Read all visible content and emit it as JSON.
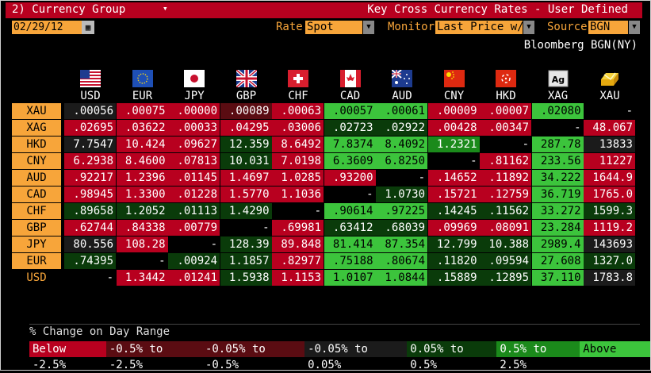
{
  "titlebar": {
    "left": "2) Currency Group",
    "caret": "▾",
    "right": "Key Cross Currency Rates - User Defined"
  },
  "controls": {
    "date": "02/29/12",
    "rate_label": "Rate",
    "rate_value": "Spot",
    "monitor_label": "Monitor",
    "monitor_value": "Last Price w/",
    "source_label": "Source",
    "source_value": "BGN",
    "source_text": "Bloomberg BGN(NY)"
  },
  "columns": [
    {
      "code": "USD",
      "flag": "us-flag-icon"
    },
    {
      "code": "EUR",
      "flag": "eu-flag-icon"
    },
    {
      "code": "JPY",
      "flag": "jp-flag-icon"
    },
    {
      "code": "GBP",
      "flag": "gb-flag-icon"
    },
    {
      "code": "CHF",
      "flag": "ch-flag-icon"
    },
    {
      "code": "CAD",
      "flag": "ca-flag-icon"
    },
    {
      "code": "AUD",
      "flag": "au-flag-icon"
    },
    {
      "code": "CNY",
      "flag": "cn-flag-icon"
    },
    {
      "code": "HKD",
      "flag": "hk-flag-icon"
    },
    {
      "code": "XAG",
      "flag": "silver-icon"
    },
    {
      "code": "XAU",
      "flag": "gold-icon"
    }
  ],
  "rows": [
    {
      "code": "XAU",
      "cells": [
        [
          ".00056",
          "ng"
        ],
        [
          ".00075",
          "lr"
        ],
        [
          ".00000",
          "lr"
        ],
        [
          ".00089",
          "dr"
        ],
        [
          ".00063",
          "lr"
        ],
        [
          ".00057",
          "lg"
        ],
        [
          ".00061",
          "lg"
        ],
        [
          ".00009",
          "lr"
        ],
        [
          ".00007",
          "lr"
        ],
        [
          ".02080",
          "lg"
        ],
        [
          "-",
          "na"
        ]
      ]
    },
    {
      "code": "XAG",
      "cells": [
        [
          ".02695",
          "lr"
        ],
        [
          ".03622",
          "lr"
        ],
        [
          ".00033",
          "lr"
        ],
        [
          ".04295",
          "lr"
        ],
        [
          ".03006",
          "lr"
        ],
        [
          ".02723",
          "dg"
        ],
        [
          ".02922",
          "dg"
        ],
        [
          ".00428",
          "lr"
        ],
        [
          ".00347",
          "lr"
        ],
        [
          "-",
          "na"
        ],
        [
          "48.067",
          "lr"
        ]
      ]
    },
    {
      "code": "HKD",
      "cells": [
        [
          "7.7547",
          "ng"
        ],
        [
          "10.424",
          "lr"
        ],
        [
          ".09627",
          "lr"
        ],
        [
          "12.359",
          "dg"
        ],
        [
          "8.6492",
          "lr"
        ],
        [
          "7.8374",
          "lg"
        ],
        [
          "8.4092",
          "lg"
        ],
        [
          "1.2321",
          "mg"
        ],
        [
          "-",
          "na"
        ],
        [
          "287.78",
          "lg"
        ],
        [
          "13833",
          "ng"
        ]
      ]
    },
    {
      "code": "CNY",
      "cells": [
        [
          "6.2938",
          "lr"
        ],
        [
          "8.4600",
          "lr"
        ],
        [
          ".07813",
          "lr"
        ],
        [
          "10.031",
          "dg"
        ],
        [
          "7.0198",
          "lr"
        ],
        [
          "6.3609",
          "lg"
        ],
        [
          "6.8250",
          "lg"
        ],
        [
          "-",
          "na"
        ],
        [
          ".81162",
          "lr"
        ],
        [
          "233.56",
          "lg"
        ],
        [
          "11227",
          "lr"
        ]
      ]
    },
    {
      "code": "AUD",
      "cells": [
        [
          ".92217",
          "lr"
        ],
        [
          "1.2396",
          "lr"
        ],
        [
          ".01145",
          "lr"
        ],
        [
          "1.4697",
          "lr"
        ],
        [
          "1.0285",
          "lr"
        ],
        [
          ".93200",
          "lr"
        ],
        [
          "-",
          "na"
        ],
        [
          ".14652",
          "lr"
        ],
        [
          ".11892",
          "lr"
        ],
        [
          "34.222",
          "lg"
        ],
        [
          "1644.9",
          "lr"
        ]
      ]
    },
    {
      "code": "CAD",
      "cells": [
        [
          ".98945",
          "lr"
        ],
        [
          "1.3300",
          "lr"
        ],
        [
          ".01228",
          "lr"
        ],
        [
          "1.5770",
          "lr"
        ],
        [
          "1.1036",
          "lr"
        ],
        [
          "-",
          "na"
        ],
        [
          "1.0730",
          "dg"
        ],
        [
          ".15721",
          "lr"
        ],
        [
          ".12759",
          "lr"
        ],
        [
          "36.719",
          "lg"
        ],
        [
          "1765.0",
          "lr"
        ]
      ]
    },
    {
      "code": "CHF",
      "cells": [
        [
          ".89658",
          "dg"
        ],
        [
          "1.2052",
          "dg"
        ],
        [
          ".01113",
          "dg"
        ],
        [
          "1.4290",
          "dg"
        ],
        [
          "-",
          "na"
        ],
        [
          ".90614",
          "lg"
        ],
        [
          ".97225",
          "lg"
        ],
        [
          ".14245",
          "dg"
        ],
        [
          ".11562",
          "dg"
        ],
        [
          "33.272",
          "lg"
        ],
        [
          "1599.3",
          "dg"
        ]
      ]
    },
    {
      "code": "GBP",
      "cells": [
        [
          ".62744",
          "lr"
        ],
        [
          ".84338",
          "lr"
        ],
        [
          ".00779",
          "lr"
        ],
        [
          "-",
          "na"
        ],
        [
          ".69981",
          "lr"
        ],
        [
          ".63412",
          "dg"
        ],
        [
          ".68039",
          "dg"
        ],
        [
          ".09969",
          "lr"
        ],
        [
          ".08091",
          "lr"
        ],
        [
          "23.284",
          "lg"
        ],
        [
          "1119.2",
          "lr"
        ]
      ]
    },
    {
      "code": "JPY",
      "cells": [
        [
          "80.556",
          "ng"
        ],
        [
          "108.28",
          "lr"
        ],
        [
          "-",
          "na"
        ],
        [
          "128.39",
          "dg"
        ],
        [
          "89.848",
          "lr"
        ],
        [
          "81.414",
          "lg"
        ],
        [
          "87.354",
          "lg"
        ],
        [
          "12.799",
          "dg"
        ],
        [
          "10.388",
          "dg"
        ],
        [
          "2989.4",
          "lg"
        ],
        [
          "143693",
          "ng"
        ]
      ]
    },
    {
      "code": "EUR",
      "cells": [
        [
          ".74395",
          "dg"
        ],
        [
          "-",
          "na"
        ],
        [
          ".00924",
          "dg"
        ],
        [
          "1.1857",
          "dg"
        ],
        [
          ".82977",
          "lr"
        ],
        [
          ".75188",
          "lg"
        ],
        [
          ".80674",
          "lg"
        ],
        [
          ".11820",
          "dg"
        ],
        [
          ".09594",
          "dg"
        ],
        [
          "27.608",
          "lg"
        ],
        [
          "1327.0",
          "dg"
        ]
      ]
    },
    {
      "code": "USD",
      "cells": [
        [
          "-",
          "na"
        ],
        [
          "1.3442",
          "lr"
        ],
        [
          ".01241",
          "lr"
        ],
        [
          "1.5938",
          "dg"
        ],
        [
          "1.1153",
          "lr"
        ],
        [
          "1.0107",
          "lg"
        ],
        [
          "1.0844",
          "lg"
        ],
        [
          ".15889",
          "dg"
        ],
        [
          ".12895",
          "dg"
        ],
        [
          "37.110",
          "lg"
        ],
        [
          "1783.8",
          "ng"
        ]
      ]
    }
  ],
  "legend": {
    "label": "% Change on Day Range",
    "items": [
      {
        "text": "Below -2.5%",
        "cls": "lr"
      },
      {
        "text": "-0.5% to -2.5%",
        "cls": "dr"
      },
      {
        "text": "-0.05% to -0.5%",
        "cls": "dr"
      },
      {
        "text": "-0.05% to 0.05%",
        "cls": "ng"
      },
      {
        "text": "0.05% to 0.5%",
        "cls": "dg"
      },
      {
        "text": "0.5% to 2.5%",
        "cls": "mg"
      },
      {
        "text": "Above 2.5%",
        "cls": "lg"
      }
    ]
  }
}
